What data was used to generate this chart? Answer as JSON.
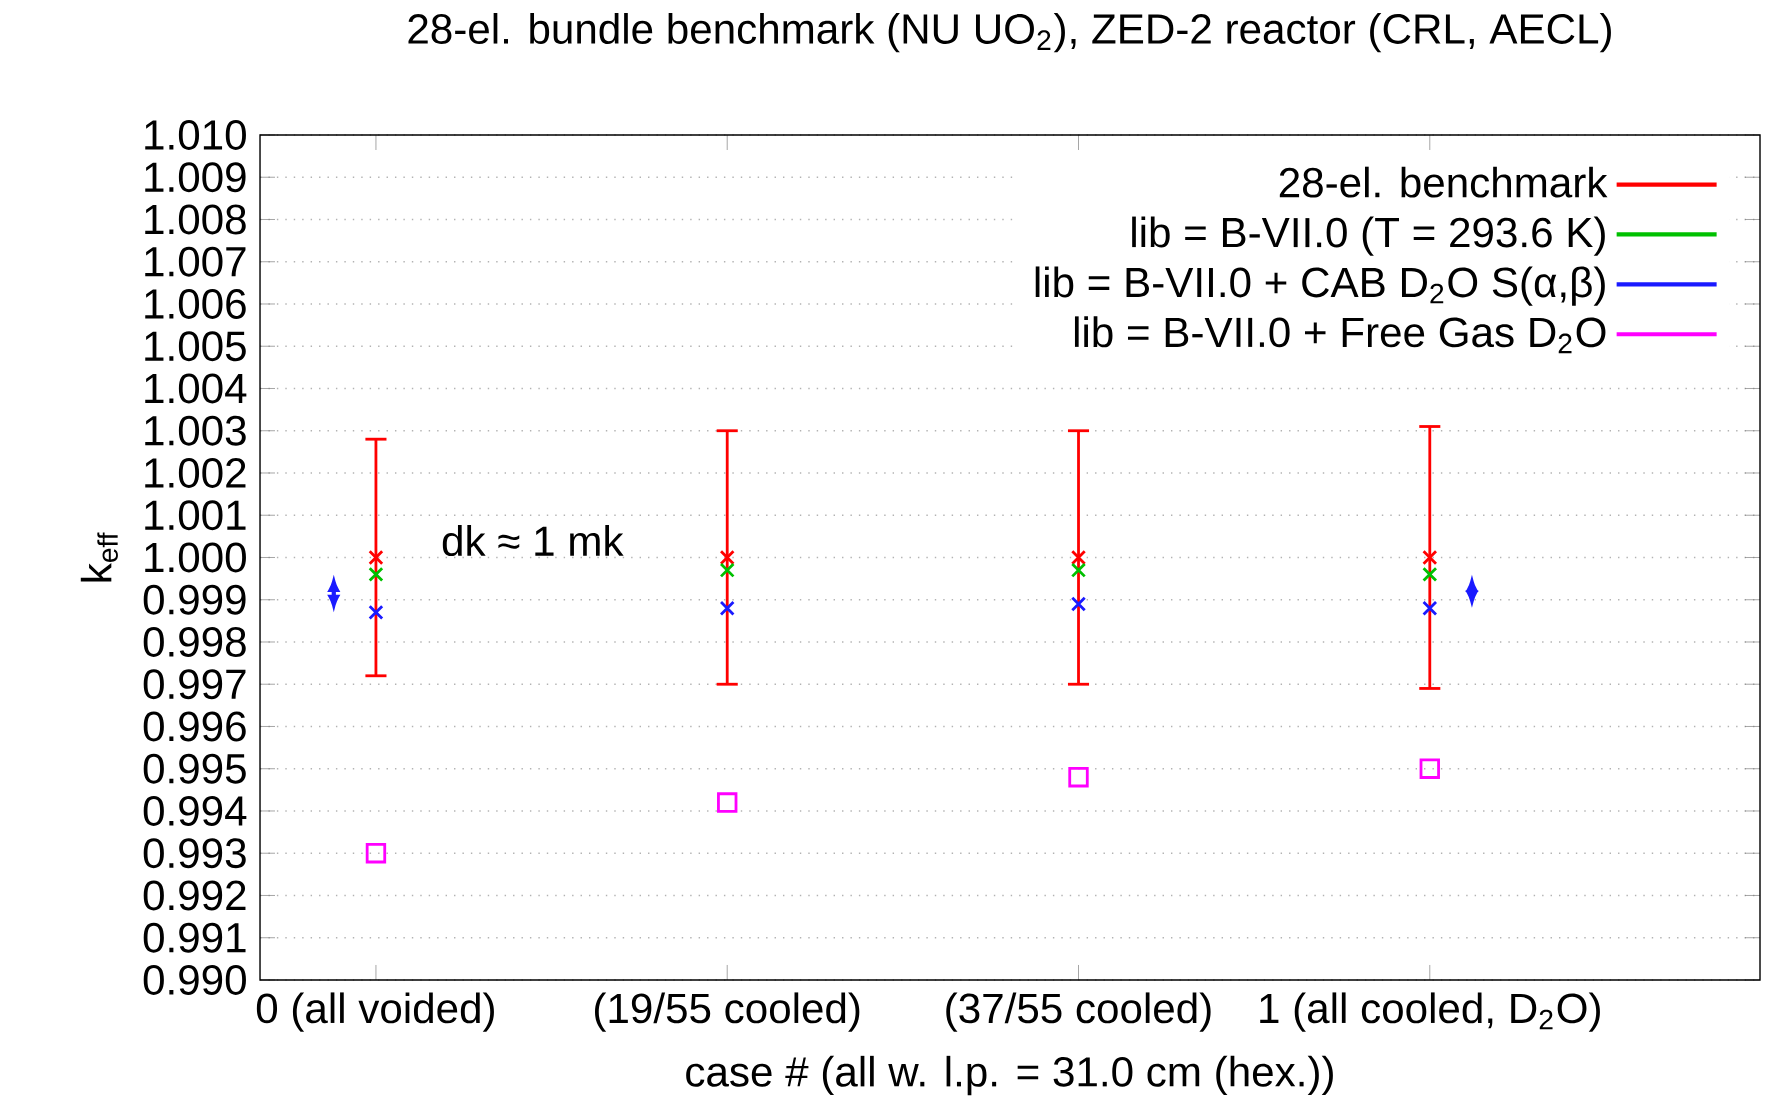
{
  "chart_data": {
    "type": "scatter",
    "title": "28-el. bundle benchmark (NU UO$_{2}$),  ZED-2 reactor (CRL, AECL)",
    "xlabel": "case #  (all w. l.p. = 31.0 cm (hex.))",
    "ylabel": "k$_{eff}$",
    "categories": [
      "0 (all voided)",
      "(19/55 cooled)",
      "(37/55 cooled)",
      "1 (all cooled, D$_{2}$O)"
    ],
    "series": [
      {
        "name": "28-el. benchmark",
        "color": "#ff0000",
        "marker": "cross",
        "values": [
          1.0,
          1.0,
          1.0,
          1.0
        ],
        "errors": [
          [
            0.9972,
            1.0028
          ],
          [
            0.997,
            1.003
          ],
          [
            0.997,
            1.003
          ],
          [
            0.9969,
            1.0031
          ]
        ]
      },
      {
        "name": "lib = B-VII.0 (T = 293.6 K)",
        "color": "#00c000",
        "marker": "cross",
        "values": [
          0.9996,
          0.9997,
          0.9997,
          0.9996
        ]
      },
      {
        "name": "lib = B-VII.0 + CAB D$_{2}$O S(α,β)",
        "color": "#1a1aff",
        "marker": "cross",
        "values": [
          0.9987,
          0.9988,
          0.9989,
          0.9988
        ]
      },
      {
        "name": "lib = B-VII.0 + Free Gas D$_{2}$O",
        "color": "#ff00ff",
        "marker": "square",
        "values": [
          0.993,
          0.9942,
          0.9948,
          0.995
        ]
      }
    ],
    "ylim": [
      0.99,
      1.01
    ],
    "yticks": [
      {
        "value": 0.99,
        "label": "0.990"
      },
      {
        "value": 0.991,
        "label": "0.991"
      },
      {
        "value": 0.992,
        "label": "0.992"
      },
      {
        "value": 0.993,
        "label": "0.993"
      },
      {
        "value": 0.994,
        "label": "0.994"
      },
      {
        "value": 0.995,
        "label": "0.995"
      },
      {
        "value": 0.996,
        "label": "0.996"
      },
      {
        "value": 0.997,
        "label": "0.997"
      },
      {
        "value": 0.998,
        "label": "0.998"
      },
      {
        "value": 0.999,
        "label": "0.999"
      },
      {
        "value": 1.0,
        "label": "1.000"
      },
      {
        "value": 1.001,
        "label": "1.001"
      },
      {
        "value": 1.002,
        "label": "1.002"
      },
      {
        "value": 1.003,
        "label": "1.003"
      },
      {
        "value": 1.004,
        "label": "1.004"
      },
      {
        "value": 1.005,
        "label": "1.005"
      },
      {
        "value": 1.006,
        "label": "1.006"
      },
      {
        "value": 1.007,
        "label": "1.007"
      },
      {
        "value": 1.008,
        "label": "1.008"
      },
      {
        "value": 1.009,
        "label": "1.009"
      },
      {
        "value": 1.01,
        "label": "1.010"
      }
    ],
    "grid": "y",
    "legend": "top right",
    "annotations": [
      "dk ≈ 1 mk"
    ]
  }
}
